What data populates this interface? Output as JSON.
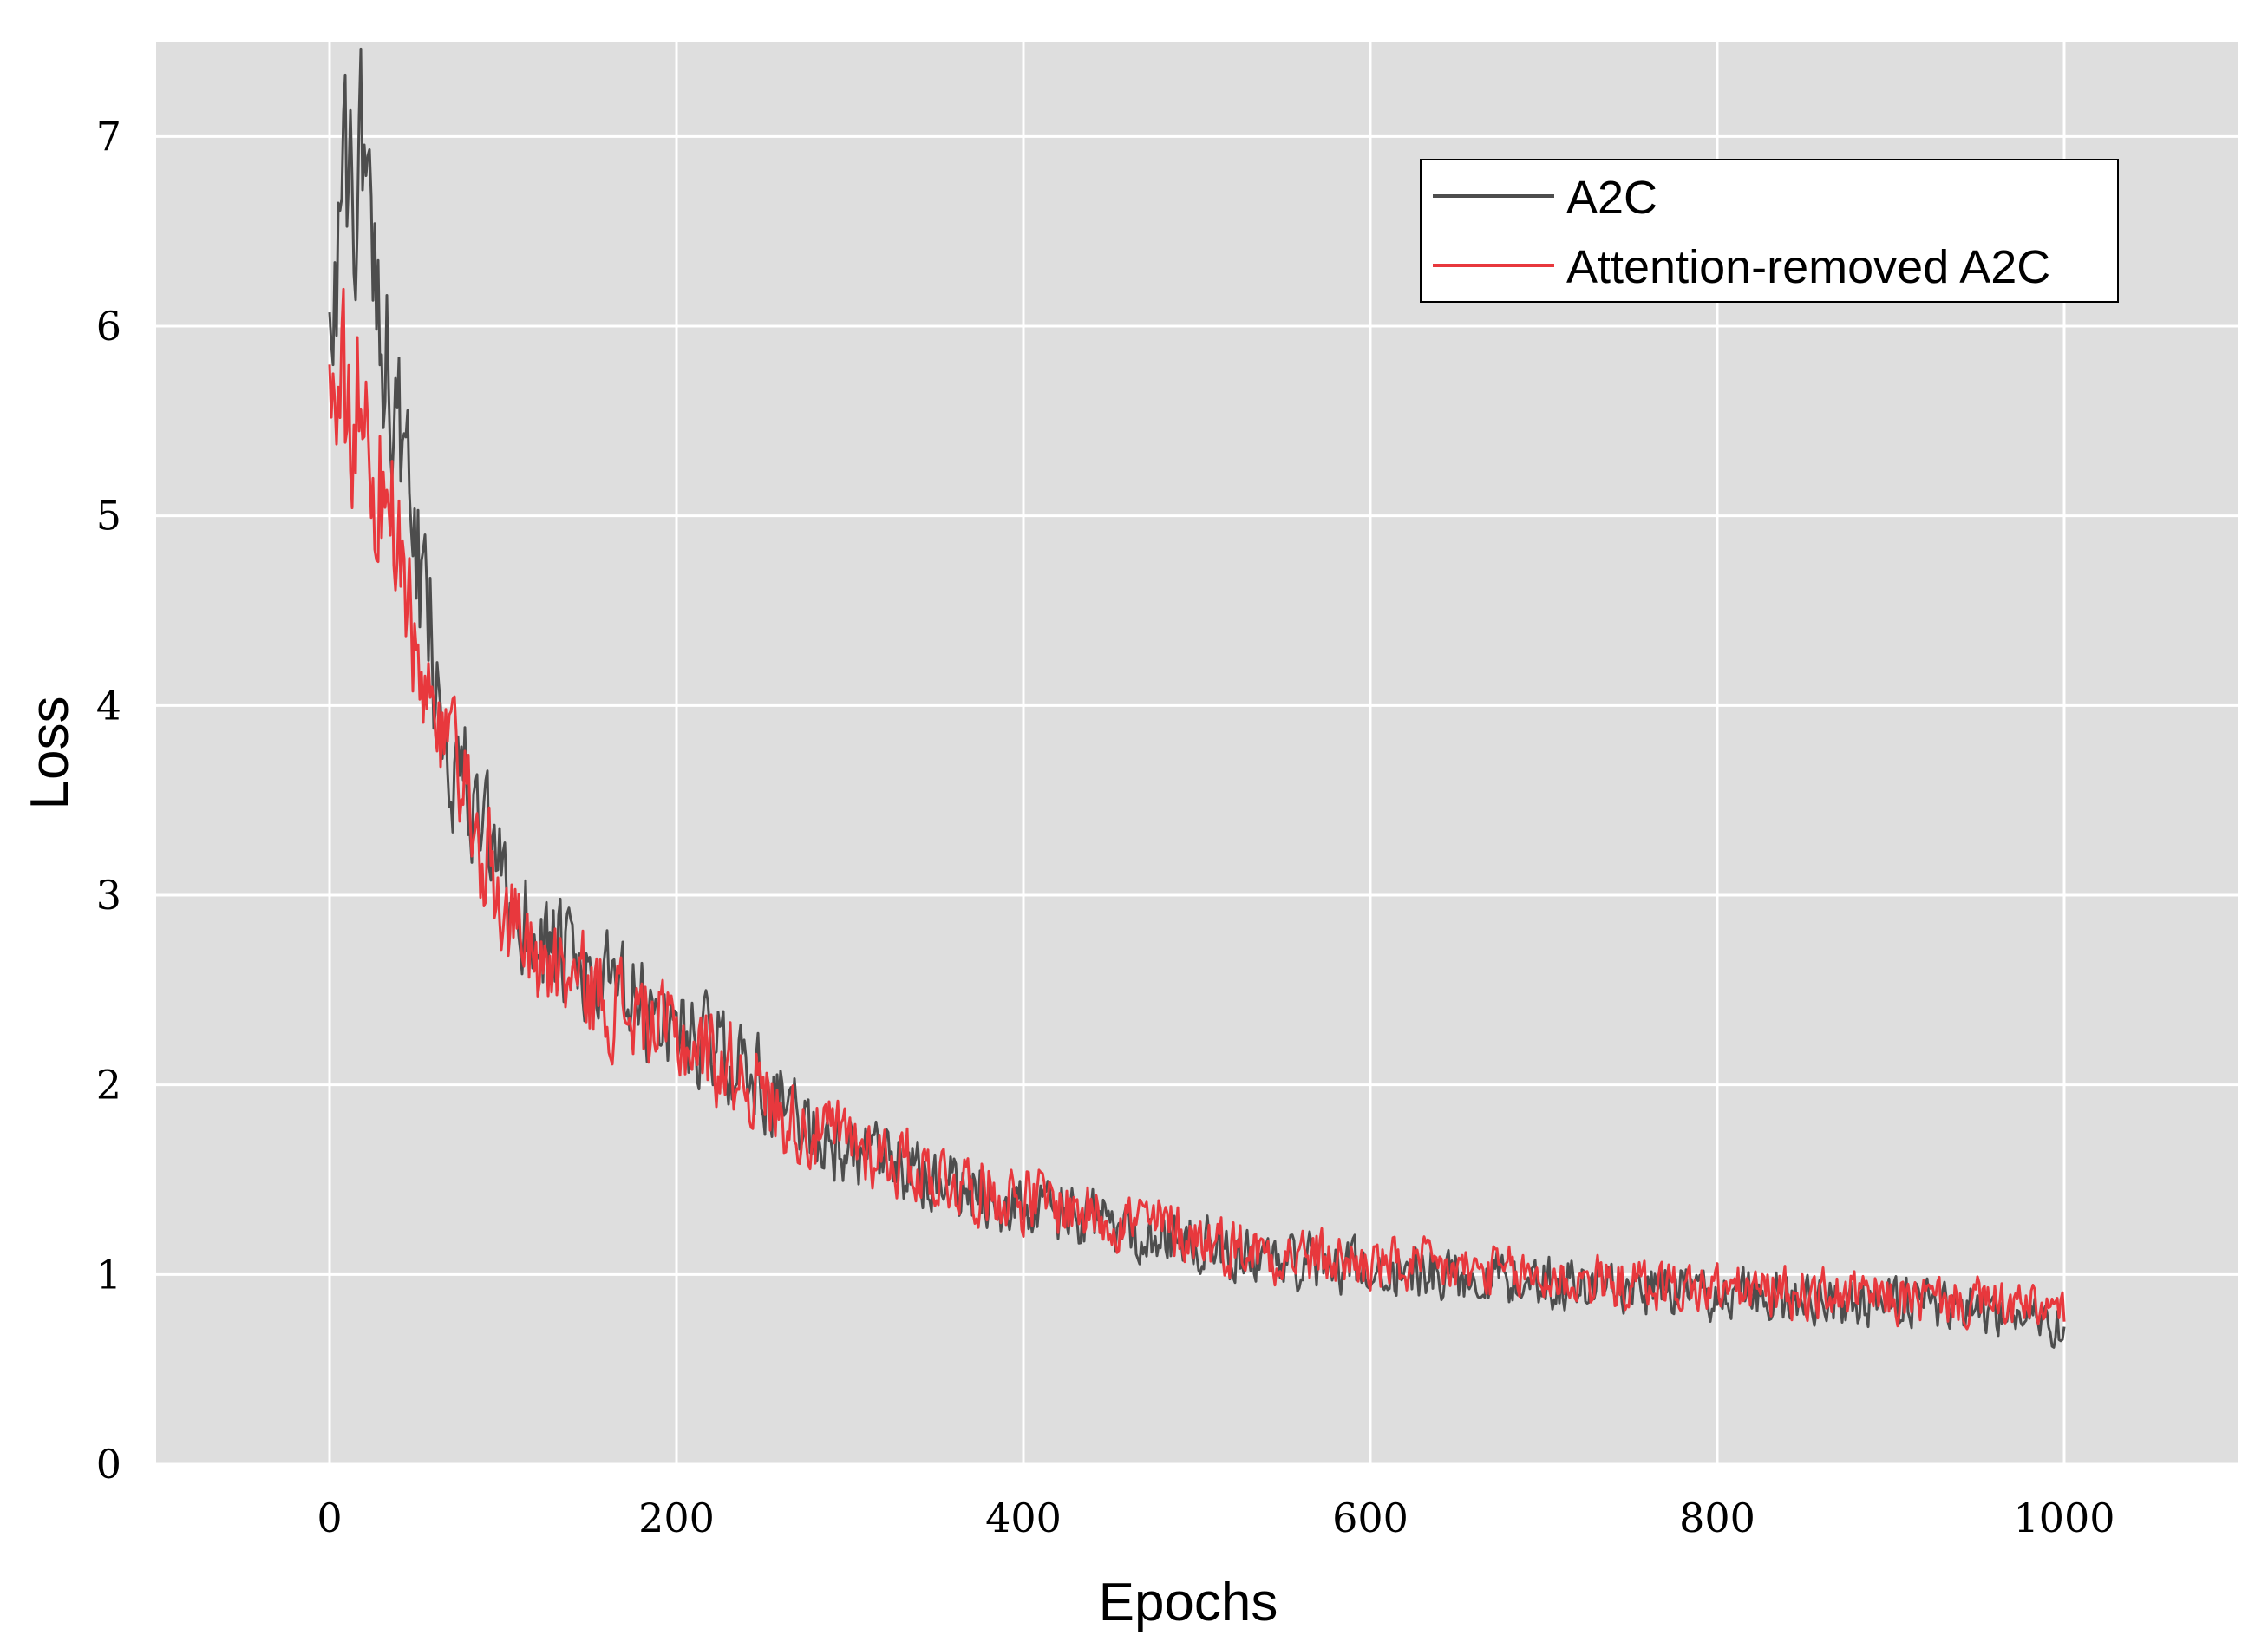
{
  "chart_data": {
    "type": "line",
    "title": "",
    "xlabel": "Epochs",
    "ylabel": "Loss",
    "xlim": [
      -100,
      1100
    ],
    "ylim": [
      0,
      7.5
    ],
    "xticks": [
      0,
      200,
      400,
      600,
      800,
      1000
    ],
    "xtick_labels": [
      "0",
      "200",
      "400",
      "600",
      "800",
      "1000"
    ],
    "yticks": [
      0,
      1,
      2,
      3,
      4,
      5,
      6,
      7
    ],
    "ytick_labels": [
      "0",
      "1",
      "2",
      "3",
      "4",
      "5",
      "6",
      "7"
    ],
    "grid": true,
    "legend_position": "top-right",
    "background_color": "#dedede",
    "grid_color": "#ffffff",
    "series": [
      {
        "name": "A2C",
        "color": "#4d4d4d",
        "x": [
          0,
          10,
          17,
          25,
          35,
          45,
          55,
          70,
          85,
          100,
          120,
          140,
          160,
          180,
          200,
          220,
          240,
          260,
          280,
          300,
          330,
          360,
          400,
          440,
          480,
          520,
          560,
          600,
          650,
          700,
          750,
          800,
          850,
          900,
          950,
          1000
        ],
        "y": [
          6.3,
          6.6,
          6.9,
          6.5,
          5.8,
          5.0,
          4.5,
          3.8,
          3.4,
          3.0,
          2.8,
          2.6,
          2.5,
          2.4,
          2.3,
          2.2,
          2.1,
          1.9,
          1.75,
          1.65,
          1.55,
          1.45,
          1.35,
          1.28,
          1.2,
          1.12,
          1.07,
          1.03,
          1.0,
          0.97,
          0.93,
          0.9,
          0.88,
          0.85,
          0.83,
          0.72
        ]
      },
      {
        "name": "Attention-removed A2C",
        "color": "#e8383d",
        "x": [
          0,
          10,
          17,
          25,
          35,
          45,
          55,
          70,
          85,
          100,
          120,
          140,
          160,
          180,
          200,
          220,
          240,
          260,
          280,
          300,
          330,
          360,
          400,
          440,
          480,
          520,
          560,
          600,
          650,
          700,
          750,
          800,
          850,
          900,
          950,
          1000
        ],
        "y": [
          5.8,
          5.65,
          5.6,
          5.3,
          5.0,
          4.4,
          4.0,
          3.6,
          3.3,
          2.9,
          2.7,
          2.55,
          2.45,
          2.35,
          2.25,
          2.15,
          2.05,
          1.85,
          1.75,
          1.7,
          1.6,
          1.5,
          1.4,
          1.33,
          1.25,
          1.15,
          1.1,
          1.05,
          1.02,
          0.98,
          0.95,
          0.92,
          0.9,
          0.87,
          0.85,
          0.8
        ]
      }
    ]
  }
}
